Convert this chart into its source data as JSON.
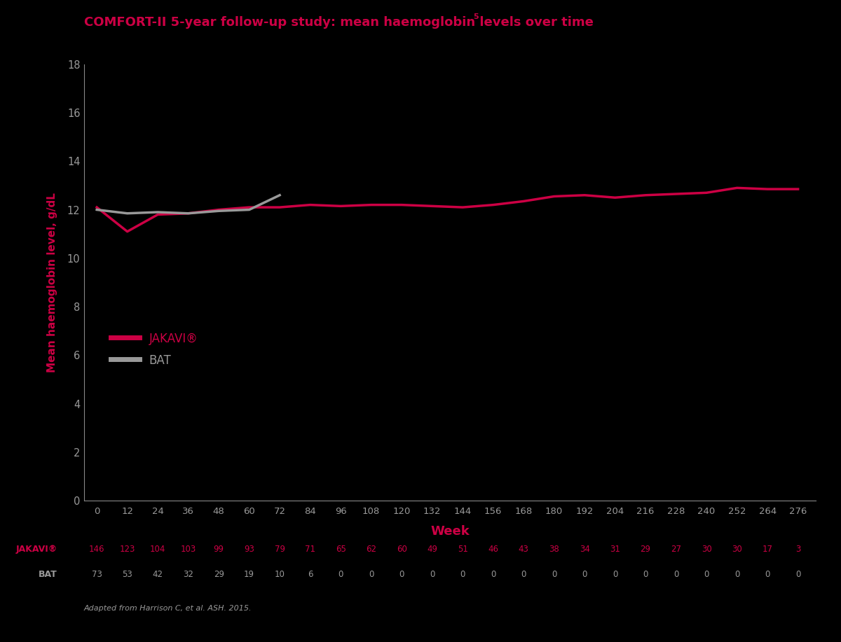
{
  "title": "COMFORT-II 5-year follow-up study: mean haemoglobin levels over time",
  "title_superscript": "5",
  "ylabel": "Mean haemoglobin level, g/dL",
  "xlabel": "Week",
  "background_color": "#000000",
  "title_color": "#cc0044",
  "ylabel_color": "#cc0044",
  "xlabel_color": "#cc0044",
  "tick_color": "#999999",
  "axis_color": "#888888",
  "jakavi_color": "#cc0044",
  "bat_color": "#999999",
  "ylim": [
    0,
    18
  ],
  "yticks": [
    0,
    2,
    4,
    6,
    8,
    10,
    12,
    14,
    16,
    18
  ],
  "x_weeks": [
    0,
    12,
    24,
    36,
    48,
    60,
    72,
    84,
    96,
    108,
    120,
    132,
    144,
    156,
    168,
    180,
    192,
    204,
    216,
    228,
    240,
    252,
    264,
    276
  ],
  "jakavi_y": [
    12.1,
    11.1,
    11.8,
    11.85,
    12.0,
    12.1,
    12.1,
    12.2,
    12.15,
    12.2,
    12.2,
    12.15,
    12.1,
    12.2,
    12.35,
    12.55,
    12.6,
    12.5,
    12.6,
    12.65,
    12.7,
    12.9,
    12.85,
    12.85
  ],
  "bat_x": [
    0,
    12,
    24,
    36,
    48,
    60,
    72
  ],
  "bat_y": [
    12.0,
    11.85,
    11.9,
    11.85,
    11.95,
    12.0,
    12.6
  ],
  "jakavi_n": [
    146,
    123,
    104,
    103,
    99,
    93,
    79,
    71,
    65,
    62,
    60,
    49,
    51,
    46,
    43,
    38,
    34,
    31,
    29,
    27,
    30,
    30,
    17,
    3
  ],
  "bat_n": [
    73,
    53,
    42,
    32,
    29,
    19,
    10,
    6,
    0,
    0,
    0,
    0,
    0,
    0,
    0,
    0,
    0,
    0,
    0,
    0,
    0,
    0,
    0,
    0
  ],
  "footnote": "Adapted from Harrison C, et al. ASH. 2015.",
  "legend_jakavi": "JAKAVI®",
  "legend_bat": "BAT",
  "linewidth": 2.5,
  "fig_width": 12.0,
  "fig_height": 9.17,
  "dpi": 100
}
